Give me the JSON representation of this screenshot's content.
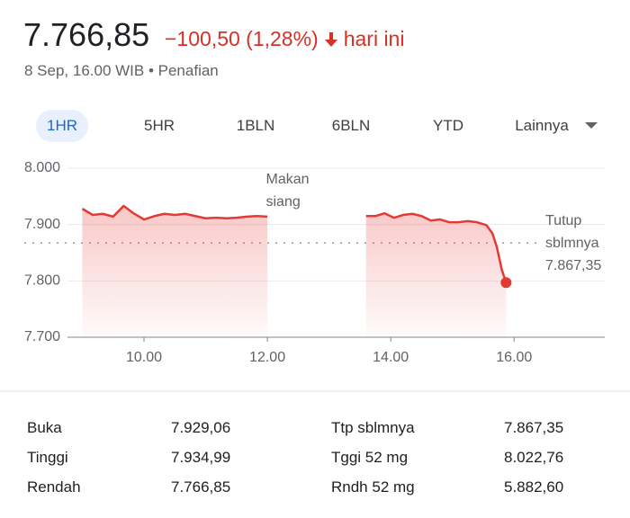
{
  "header": {
    "price": "7.766,85",
    "change": "−100,50 (1,28%)",
    "period": "hari ini",
    "subtitle": "8 Sep, 16.00 WIB • Penafian"
  },
  "tabs": {
    "items": [
      "1HR",
      "5HR",
      "1BLN",
      "6BLN",
      "YTD",
      "Lainnya"
    ],
    "selected": 0
  },
  "chart_data": {
    "type": "line",
    "x": [
      9,
      9.17,
      9.33,
      9.5,
      9.67,
      9.83,
      10,
      10.17,
      10.33,
      10.5,
      10.67,
      10.83,
      11,
      11.17,
      11.33,
      11.5,
      11.67,
      11.83,
      12,
      12.8,
      13.6,
      13.75,
      13.9,
      14.05,
      14.2,
      14.35,
      14.5,
      14.65,
      14.8,
      14.95,
      15.1,
      15.25,
      15.4,
      15.55,
      15.65,
      15.72,
      15.8,
      15.87
    ],
    "series": [
      {
        "color": "#e53935",
        "values": [
          7928,
          7917,
          7919,
          7914,
          7933,
          7920,
          7909,
          7915,
          7919,
          7917,
          7919,
          7915,
          7911,
          7912,
          7911,
          7912,
          7914,
          7915,
          7914,
          null,
          7915,
          7915,
          7920,
          7912,
          7917,
          7919,
          7915,
          7907,
          7909,
          7904,
          7904,
          7906,
          7904,
          7899,
          7884,
          7860,
          7820,
          7797
        ]
      }
    ],
    "xlim": [
      8.76,
      17.47
    ],
    "xticks": [
      {
        "value": 10,
        "label": "10.00"
      },
      {
        "value": 12,
        "label": "12.00"
      },
      {
        "value": 14,
        "label": "14.00"
      },
      {
        "value": 16,
        "label": "16.00"
      }
    ],
    "ylim": [
      7700,
      8000
    ],
    "yticks": [
      {
        "value": 7700,
        "label": "7.700"
      },
      {
        "value": 7800,
        "label": "7.800"
      },
      {
        "value": 7900,
        "label": "7.900"
      },
      {
        "value": 8000,
        "label": "8.000"
      }
    ],
    "grid": true,
    "annotation": {
      "text": "Makan siang",
      "x": 12.4
    },
    "reference_line": {
      "value": 7867.35,
      "label": "Tutup sblmnya",
      "value_label": "7.867,35"
    }
  },
  "stats": {
    "rows": [
      [
        "Buka",
        "7.929,06",
        "Ttp sblmnya",
        "7.867,35"
      ],
      [
        "Tinggi",
        "7.934,99",
        "Tggi 52 mg",
        "8.022,76"
      ],
      [
        "Rendah",
        "7.766,85",
        "Rndh 52 mg",
        "5.882,60"
      ]
    ]
  }
}
